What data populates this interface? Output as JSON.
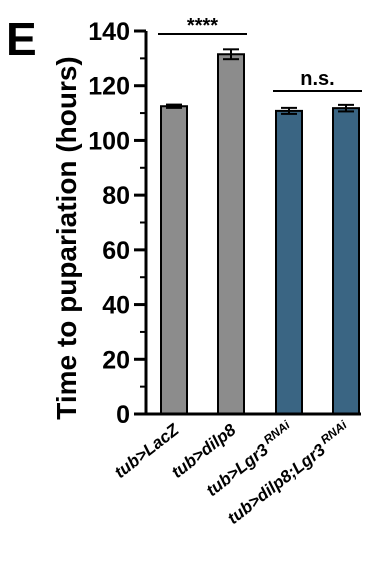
{
  "panel_label": "E",
  "chart_data": {
    "type": "bar",
    "title": "",
    "xlabel": "",
    "ylabel": "Time to pupariation (hours)",
    "ylim": [
      0,
      140
    ],
    "yticks": [
      0,
      20,
      40,
      60,
      80,
      100,
      120,
      140
    ],
    "categories": [
      {
        "main": "tub>LacZ",
        "sup": ""
      },
      {
        "main": "tub>dilp8",
        "sup": ""
      },
      {
        "main": "tub>Lgr3",
        "sup": "RNAi"
      },
      {
        "main": "tub>dilp8;Lgr3",
        "sup": "RNAi"
      }
    ],
    "values": [
      112.5,
      131.5,
      110.8,
      111.8
    ],
    "errors": [
      0.6,
      1.8,
      1.1,
      1.2
    ],
    "bar_colors": [
      "#8c8c8c",
      "#8c8c8c",
      "#3a6583",
      "#3a6583"
    ],
    "significance": [
      {
        "from": 0,
        "to": 1,
        "label": "****"
      },
      {
        "from": 2,
        "to": 3,
        "label": "n.s."
      }
    ]
  }
}
